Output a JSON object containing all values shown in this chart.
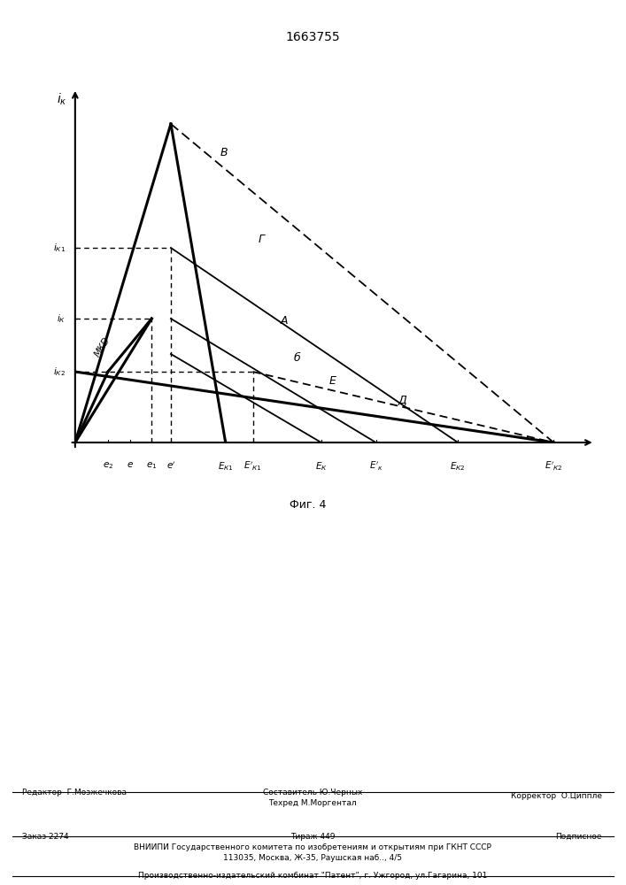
{
  "title": "1663755",
  "fig_label": "Фиг. 4",
  "bg_color": "#ffffff",
  "x_e2": 1.2,
  "x_e": 2.0,
  "x_e1": 2.8,
  "x_ep": 3.5,
  "x_EK1": 5.5,
  "x_EK1p": 6.5,
  "x_EK": 9.0,
  "x_EKp": 11.0,
  "x_EK2": 14.0,
  "x_EK2p": 17.5,
  "y_iK2": 2.0,
  "y_iK": 3.5,
  "y_iK1": 5.5,
  "y_peak": 9.0,
  "xlim": [
    0,
    19
  ],
  "ylim": [
    0,
    10
  ],
  "footer_editor": "Редактор  Г.Мозжечкова",
  "footer_comp": "Составитель Ю.Черных",
  "footer_tech": "Техред М.Моргентал",
  "footer_corr": "Корректор  О.Циппле",
  "footer_order": "Заказ 2274",
  "footer_tirazh": "Тираж 449",
  "footer_podp": "Подписное",
  "footer_vniip": "ВНИИПИ Государственного комитета по изобретениям и открытиям при ГКНТ СССР",
  "footer_addr": "113035, Москва, Ж-35, Раушская наб.., 4/5",
  "footer_patent": "Производственно-издательский комбинат \"Патент\", г. Ужгород, ул.Гагарина, 101"
}
